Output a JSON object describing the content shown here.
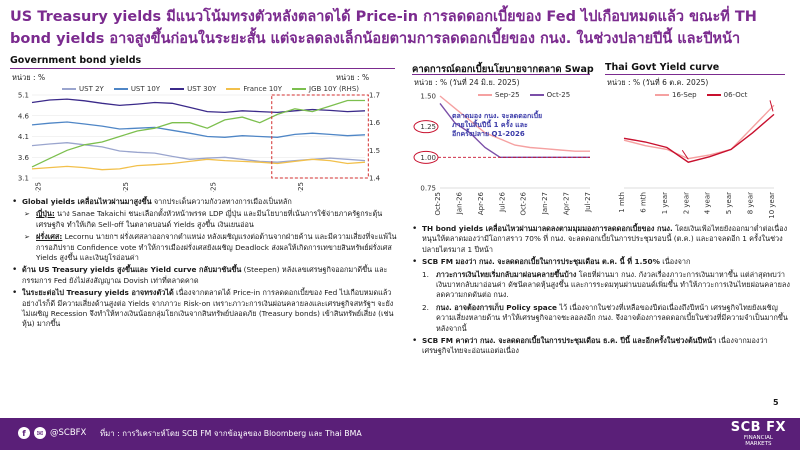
{
  "headline": "US Treasury yields มีแนวโน้มทรงตัวหลังตลาดได้ Price-in การลดดอกเบี้ยของ Fed ไปเกือบหมดแล้ว ขณะที่ TH bond yields อาจสูงขึ้นก่อนในระยะสั้น แต่จะลดลงเล็กน้อยตามการลดดอกเบี้ยของ กนง. ในช่วงปลายปีนี้ และปีหน้า",
  "chart1": {
    "title": "Government bond yields",
    "unit_left": "หน่วย : %",
    "unit_right": "หน่วย : %",
    "legend": [
      {
        "name": "UST 2Y",
        "color": "#9aa5ce"
      },
      {
        "name": "UST 10Y",
        "color": "#4f86c6"
      },
      {
        "name": "UST 30Y",
        "color": "#3b2a8a"
      },
      {
        "name": "France 10Y",
        "color": "#f2c04b"
      },
      {
        "name": "JGB 10Y (RHS)",
        "color": "#7cbf4e"
      }
    ]
  },
  "chart2": {
    "title": "คาดการณ์ดอกเบี้ยนโยบายจากตลาด Swap",
    "unit": "หน่วย : % (วันที่ 24 มิ.ย. 2025)",
    "legend": [
      {
        "name": "Sep-25",
        "color": "#f5a1a1"
      },
      {
        "name": "Oct-25",
        "color": "#7b4fa8"
      }
    ],
    "annotation": [
      "ตลาดมอง กนง. จะลดดอกเบี้ย",
      "ภายในสิ้นปีนี้ 1 ครั้ง และ",
      "อีกครั้งปลาย Q1-2026"
    ]
  },
  "chart3": {
    "title": "Thai Govt Yield curve",
    "unit": "หน่วย : % (วันที่ 6 ต.ค. 2025)",
    "legend": [
      {
        "name": "16-Sep",
        "color": "#f5a1a1"
      },
      {
        "name": "06-Oct",
        "color": "#c8102e"
      }
    ]
  },
  "chart_data": [
    {
      "type": "line",
      "title": "Government bond yields",
      "x_ticks": [
        "Jul-25",
        "Aug-25",
        "Sep-25",
        "Oct-25"
      ],
      "ylim_left": [
        3.1,
        5.1
      ],
      "y_ticks_left": [
        3.1,
        3.6,
        4.1,
        4.6,
        5.1
      ],
      "ylim_right": [
        1.4,
        1.7
      ],
      "y_ticks_right": [
        1.4,
        1.5,
        1.6,
        1.7
      ],
      "series": [
        {
          "name": "UST 2Y",
          "axis": "left",
          "color": "#9aa5ce",
          "values": [
            3.88,
            3.92,
            3.95,
            3.9,
            3.85,
            3.75,
            3.72,
            3.7,
            3.62,
            3.55,
            3.58,
            3.6,
            3.55,
            3.5,
            3.48,
            3.52,
            3.55,
            3.58,
            3.55,
            3.52
          ]
        },
        {
          "name": "UST 10Y",
          "axis": "left",
          "color": "#4f86c6",
          "values": [
            4.38,
            4.42,
            4.45,
            4.4,
            4.35,
            4.28,
            4.3,
            4.32,
            4.25,
            4.18,
            4.1,
            4.08,
            4.12,
            4.1,
            4.08,
            4.15,
            4.18,
            4.15,
            4.12,
            4.14
          ]
        },
        {
          "name": "UST 30Y",
          "axis": "left",
          "color": "#3b2a8a",
          "values": [
            4.92,
            4.98,
            5.0,
            4.96,
            4.9,
            4.85,
            4.88,
            4.92,
            4.9,
            4.8,
            4.7,
            4.68,
            4.72,
            4.7,
            4.68,
            4.72,
            4.75,
            4.73,
            4.7,
            4.72
          ]
        },
        {
          "name": "France 10Y",
          "axis": "left",
          "color": "#f2c04b",
          "values": [
            3.32,
            3.35,
            3.38,
            3.35,
            3.3,
            3.32,
            3.4,
            3.42,
            3.45,
            3.5,
            3.55,
            3.52,
            3.5,
            3.48,
            3.45,
            3.5,
            3.55,
            3.52,
            3.45,
            3.48
          ]
        },
        {
          "name": "JGB 10Y (RHS)",
          "axis": "right",
          "color": "#7cbf4e",
          "values": [
            1.44,
            1.47,
            1.5,
            1.52,
            1.53,
            1.55,
            1.57,
            1.58,
            1.6,
            1.6,
            1.58,
            1.61,
            1.62,
            1.6,
            1.63,
            1.65,
            1.64,
            1.66,
            1.68,
            1.68
          ]
        }
      ]
    },
    {
      "type": "line",
      "title": "คาดการณ์ดอกเบี้ยนโยบายจากตลาด Swap",
      "categories": [
        "Oct-25",
        "Dec-25",
        "Feb-26",
        "Apr-26",
        "Jun-26",
        "Aug-26",
        "Oct-26",
        "Dec-26",
        "Feb-27",
        "Apr-27",
        "Jun-27"
      ],
      "x_ticks": [
        "Oct-25",
        "Jan-26",
        "Apr-26",
        "Jul-26",
        "Oct-26",
        "Jan-27",
        "Apr-27",
        "Jul-27"
      ],
      "ylim": [
        0.75,
        1.5
      ],
      "y_ticks": [
        0.75,
        1.0,
        1.25,
        1.5
      ],
      "series": [
        {
          "name": "Sep-25",
          "color": "#f5a1a1",
          "values": [
            1.5,
            1.4,
            1.3,
            1.2,
            1.15,
            1.1,
            1.08,
            1.07,
            1.06,
            1.05,
            1.05
          ]
        },
        {
          "name": "Oct-25",
          "color": "#7b4fa8",
          "values": [
            1.44,
            1.28,
            1.2,
            1.08,
            1.0,
            1.0,
            1.0,
            1.0,
            1.0,
            1.0,
            1.0
          ]
        }
      ],
      "highlight_values": [
        1.25,
        1.0
      ]
    },
    {
      "type": "line",
      "title": "Thai Govt Yield curve",
      "categories": [
        "1 mth",
        "6 mth",
        "1 year",
        "2 year",
        "4 year",
        "5 year",
        "8 year",
        "10 year"
      ],
      "ylim": [
        1.0,
        1.5
      ],
      "y_ticks": [
        1.0,
        1.1,
        1.2,
        1.3,
        1.4,
        1.5
      ],
      "series": [
        {
          "name": "16-Sep",
          "color": "#f5a1a1",
          "values": [
            1.26,
            1.23,
            1.21,
            1.16,
            1.18,
            1.21,
            1.33,
            1.45
          ]
        },
        {
          "name": "06-Oct",
          "color": "#c8102e",
          "values": [
            1.27,
            1.25,
            1.22,
            1.14,
            1.17,
            1.21,
            1.3,
            1.4
          ]
        }
      ]
    }
  ],
  "left_text": [
    {
      "kind": "b",
      "html_bold": "Global yields เคลื่อนไหวผ่านมาสูงขึ้น",
      "text": " จากประเด็นความกังวลทางการเมืองเป็นหลัก"
    },
    {
      "kind": "sub",
      "lead": "ญี่ปุ่น:",
      "text": " นาง Sanae Takaichi ชนะเลือกตั้งหัวหน้าพรรค LDP ญี่ปุ่น และมีนโยบายที่เน้นการใช้จ่ายภาครัฐกระตุ้นเศรษฐกิจ ทำให้เกิด Sell-off ในตลาดบอนด์ Yields สูงขึ้น เงินเยนอ่อน"
    },
    {
      "kind": "sub",
      "lead": "ฝรั่งเศส:",
      "text": " Lecornu นายกฯ ฝรั่งเศสลาออกจากตำแหน่ง หลังเผชิญแรงต่อต้านจากฝ่ายค้าน และมีความเสี่ยงที่จะแพ้ในการอภิปราย Confidence vote ทำให้การเมืองฝรั่งเศสยังเผชิญ Deadlock ส่งผลให้เกิดการเทขายสินทรัพย์ฝรั่งเศส Yields สูงขึ้น และเงินยูโรอ่อนค่า"
    },
    {
      "kind": "b",
      "html_bold": "ด้าน US Treasury yields สูงขึ้นและ Yield curve กลับมาชันขึ้น",
      "text": " (Steepen) หลังเลขเศรษฐกิจออกมาดีขึ้น และกรรมการ Fed ยังไม่ส่งสัญญาณ Dovish เท่าที่ตลาดคาด"
    },
    {
      "kind": "b",
      "html_bold": "ในระยะต่อไป Treasury yields อาจทรงตัวได้",
      "text": " เนื่องจากตลาดได้ Price-in การลดดอกเบี้ยของ Fed ไปเกือบหมดแล้ว อย่างไรก็ดี มีความเสี่ยงด้านสูงต่อ Yields จากภาวะ Risk-on เพราะภาวะการเงินผ่อนคลายลงและเศรษฐกิจสหรัฐฯ จะยังไม่เผชิญ Recession จึงทำให้ทางเงินน้อยกลุ่มโยกเงินจากสินทรัพย์ปลอดภัย (Treasury bonds) เข้าสินทรัพย์เสี่ยง (เช่น หุ้น) มากขึ้น"
    }
  ],
  "right_text": [
    {
      "kind": "b",
      "html_bold": "TH bond yields เคลื่อนไหวผ่านมาลดลงตามมุมมองการลดดอกเบี้ยของ กนง.",
      "text": " โดยเงินเฟ้อไทยยังออกมาต่ำต่อเนื่อง หนุนให้ตลาดมองว่ามีโอกาสราว 70% ที่ กนง. จะลดดอกเบี้ยในการประชุมรอบนี้ (ต.ค.) และอาจลดอีก 1 ครั้งในช่วงปลายไตรมาส 1 ปีหน้า"
    },
    {
      "kind": "b",
      "html_bold": "SCB FM มองว่า กนง. จะลดดอกเบี้ยในการประชุมเดือน ต.ค. นี้ ที่ 1.50%",
      "text": " เนื่องจาก"
    },
    {
      "kind": "num",
      "lead": "1.",
      "html_bold": "ภาวะการเงินไทยเริ่มกลับมาผ่อนคลายขึ้นบ้าง",
      "text": " โดยที่ผ่านมา กนง. กังวลเรื่องภาวะการเงินมาหาขึ้น แต่ล่าสุดพบว่าเงินบาทกลับมาอ่อนค่า ดัชนีตลาดหุ้นสูงขึ้น และการระดมทุนผ่านบอนด์เพิ่มขึ้น ทำให้ภาวะการเงินไทยผ่อนคลายลง ลดความกดดันต่อ กนง."
    },
    {
      "kind": "num",
      "lead": "2.",
      "html_bold": "กนง. อาจต้องการเก็บ Policy space",
      "text": " ไว้ เนื่องจากในช่วงที่เหลือของปีต่อเนื่องถึงปีหน้า เศรษฐกิจไทยยังเผชิญความเสี่ยงหลายด้าน ทำให้เศรษฐกิจอาจชะลอลงอีก กนง. จึงอาจต้องการลดดอกเบี้ยในช่วงที่มีความจำเป็นมากขึ้นหลังจากนี้"
    },
    {
      "kind": "b",
      "html_bold": "SCB FM คาดว่า กนง. จะลดดอกเบี้ยในการประชุมเดือน ธ.ค. ปีนี้ และอีกครั้งในช่วงต้นปีหน้า",
      "text": " เนื่องจากมองว่าเศรษฐกิจไทยจะอ่อนแอต่อเนื่อง"
    }
  ],
  "footer": {
    "handle": "@SCBFX",
    "source": "ที่มา : การวิเคราะห์โดย SCB FM จากข้อมูลของ Bloomberg และ Thai BMA",
    "logo": "SCB FX",
    "logo_sub1": "FINANCIAL",
    "logo_sub2": "MARKETS",
    "page": "5"
  }
}
